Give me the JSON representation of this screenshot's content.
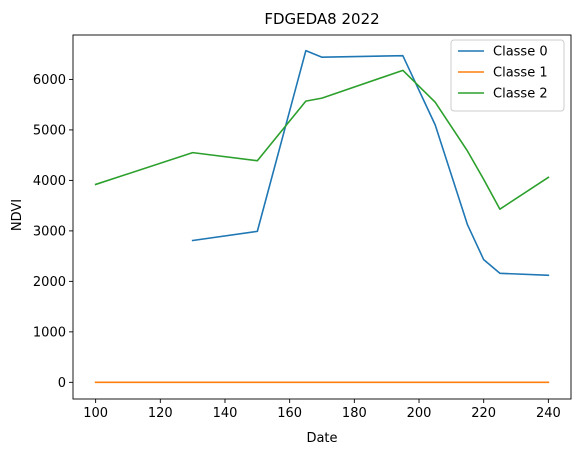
{
  "chart_data": {
    "type": "line",
    "title": "FDGEDA8 2022",
    "xlabel": "Date",
    "ylabel": "NDVI",
    "xlim": [
      93,
      247
    ],
    "ylim": [
      -330,
      6880
    ],
    "xticks": [
      100,
      120,
      140,
      160,
      180,
      200,
      220,
      240
    ],
    "yticks": [
      0,
      1000,
      2000,
      3000,
      4000,
      5000,
      6000
    ],
    "grid": false,
    "legend_position": "top-right",
    "series": [
      {
        "name": "Classe 0",
        "color": "#1f77b4",
        "x": [
          130,
          150,
          165,
          170,
          195,
          205,
          215,
          220,
          225,
          240
        ],
        "y": [
          2810,
          2990,
          6570,
          6440,
          6470,
          5100,
          3120,
          2430,
          2160,
          2120
        ]
      },
      {
        "name": "Classe 1",
        "color": "#ff7f0e",
        "x": [
          100,
          240
        ],
        "y": [
          0,
          0
        ]
      },
      {
        "name": "Classe 2",
        "color": "#2ca02c",
        "x": [
          100,
          130,
          150,
          165,
          170,
          195,
          205,
          215,
          220,
          225,
          240
        ],
        "y": [
          3920,
          4550,
          4390,
          5570,
          5630,
          6180,
          5550,
          4580,
          4020,
          3430,
          4060
        ]
      }
    ]
  }
}
